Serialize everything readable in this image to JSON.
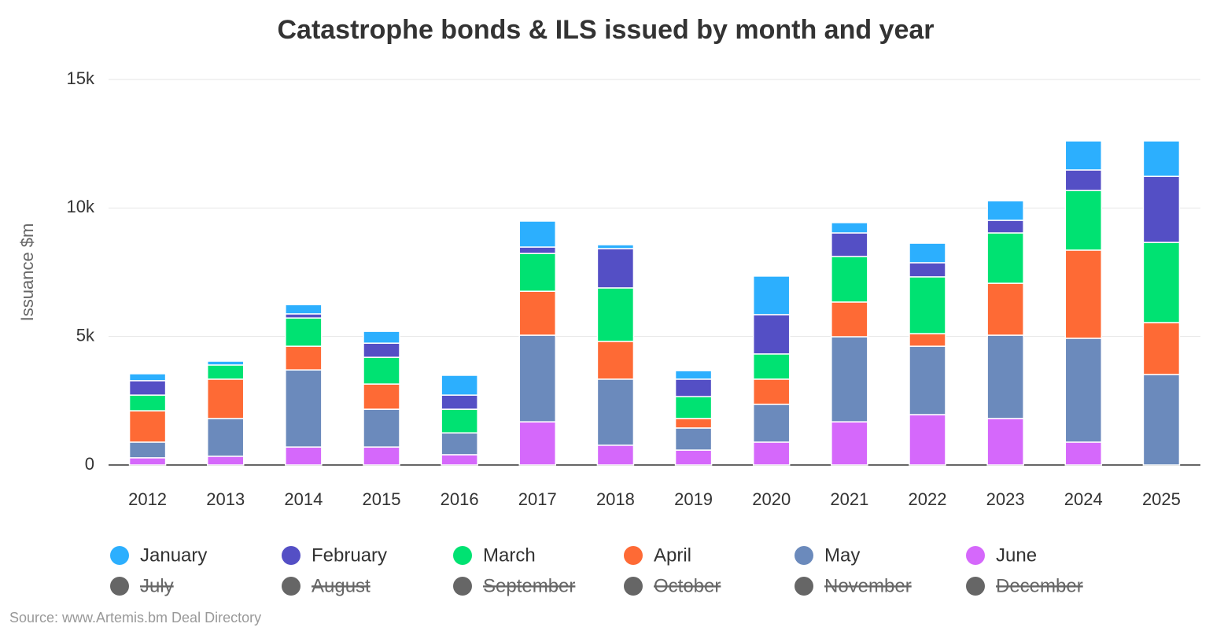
{
  "chart_data": {
    "type": "stacked_bar",
    "title": "Catastrophe bonds & ILS issued by month and year",
    "y_label": "Issuance $m",
    "source": "Source: www.Artemis.bm Deal Directory",
    "categories": [
      "2012",
      "2013",
      "2014",
      "2015",
      "2016",
      "2017",
      "2018",
      "2019",
      "2020",
      "2021",
      "2022",
      "2023",
      "2024",
      "2025"
    ],
    "series": [
      {
        "name": "January",
        "color": "#2caffe",
        "values": [
          270,
          150,
          360,
          460,
          770,
          1010,
          150,
          330,
          1500,
          400,
          760,
          760,
          1130,
          1380
        ]
      },
      {
        "name": "February",
        "color": "#544fc5",
        "values": [
          560,
          0,
          160,
          550,
          550,
          250,
          1530,
          680,
          1530,
          920,
          550,
          490,
          800,
          2570
        ]
      },
      {
        "name": "March",
        "color": "#00e272",
        "values": [
          610,
          550,
          1100,
          1040,
          920,
          1470,
          2080,
          850,
          980,
          1770,
          2210,
          1960,
          2320,
          3120
        ]
      },
      {
        "name": "April",
        "color": "#fe6a35",
        "values": [
          1220,
          1530,
          920,
          980,
          0,
          1710,
          1470,
          370,
          980,
          1350,
          490,
          2020,
          3430,
          2020
        ]
      },
      {
        "name": "May",
        "color": "#6b8abc",
        "values": [
          610,
          1470,
          3000,
          1470,
          850,
          3370,
          2570,
          860,
          1470,
          3310,
          2660,
          3240,
          4040,
          3520
        ]
      },
      {
        "name": "June",
        "color": "#d568fb",
        "values": [
          280,
          340,
          700,
          700,
          400,
          1680,
          770,
          580,
          890,
          1680,
          1960,
          1810,
          890,
          0
        ]
      }
    ],
    "hidden_legend": {
      "color": "#666666",
      "names": [
        "July",
        "August",
        "September",
        "October",
        "November",
        "December"
      ]
    },
    "ylim": [
      0,
      15000
    ],
    "yticks": [
      {
        "value": 0,
        "label": "0"
      },
      {
        "value": 5000,
        "label": "5k"
      },
      {
        "value": 10000,
        "label": "10k"
      },
      {
        "value": 15000,
        "label": "15k"
      }
    ],
    "grid": true
  }
}
